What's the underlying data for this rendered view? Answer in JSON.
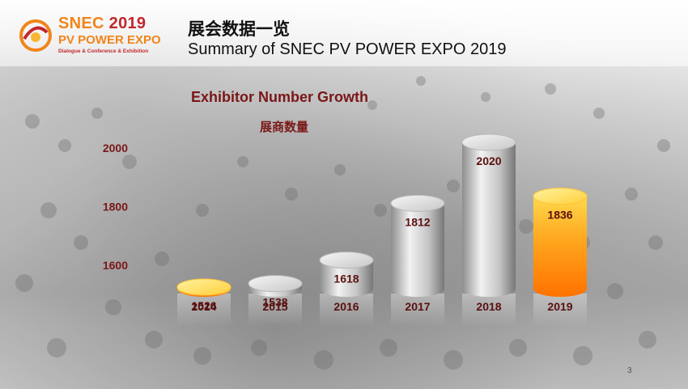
{
  "header": {
    "logo": {
      "line1_brand": "SNEC",
      "line1_year": "2019",
      "line2": "PV POWER EXPO",
      "line3": "Dialogue & Conference & Exhibition"
    },
    "title_cn": "展会数据一览",
    "title_en": "Summary of SNEC PV POWER EXPO 2019"
  },
  "page_number": "3",
  "colors": {
    "title_dark_red": "#7a1717",
    "bar_gray": "#bdbdbd",
    "bar_orange": "#ff8c00",
    "logo_orange": "#f0851a",
    "logo_red": "#c0282d"
  },
  "chart_data": {
    "type": "bar",
    "style": "3d-cylinder",
    "title": "Exhibitor Number Growth",
    "subtitle": "展商数量",
    "categories": [
      "2014",
      "2015",
      "2016",
      "2017",
      "2018",
      "2019"
    ],
    "values": [
      1526,
      1538,
      1618,
      1812,
      2020,
      1836
    ],
    "bar_colors": [
      "orange",
      "gray",
      "gray",
      "gray",
      "gray",
      "orange"
    ],
    "y_ticks": [
      "1600",
      "1800",
      "2000"
    ],
    "y_tick_values": [
      1600,
      1800,
      2000
    ],
    "ylim": [
      1400,
      2020
    ],
    "xlabel": "",
    "ylabel": "",
    "grid": false,
    "legend": "none"
  }
}
